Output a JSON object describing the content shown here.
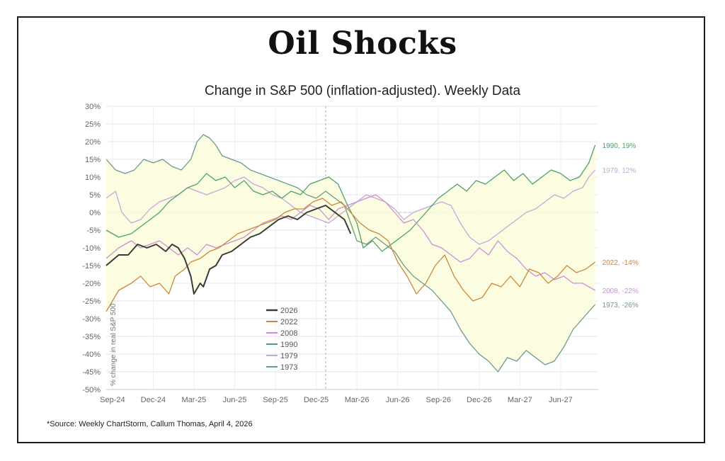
{
  "header": {
    "title": "Oil Shocks",
    "subtitle": "Change in S&P 500 (inflation-adjusted). Weekly Data"
  },
  "footer": {
    "source": "*Source: Weekly ChartStorm, Callum Thomas, April 4, 2026"
  },
  "colors": {
    "s2026": "#3a3a3a",
    "s2022": "#c9873a",
    "s2008": "#c990d8",
    "s1990": "#4ea06a",
    "s1979": "#c7a6dc",
    "s1973": "#6a9a8e",
    "fill": "#fbfbdc"
  },
  "chart_data": {
    "type": "line",
    "title": "Oil Shocks",
    "subtitle": "Change in S&P 500 (inflation-adjusted). Weekly Data",
    "ylabel": "% change in real S&P 500",
    "xlabel": "",
    "ylim": [
      -50,
      30
    ],
    "x_ticks": [
      "Sep-24",
      "Dec-24",
      "Mar-25",
      "Jun-25",
      "Sep-25",
      "Dec-25",
      "Mar-26",
      "Jun-26",
      "Sep-26",
      "Dec-26",
      "Mar-27",
      "Jun-27"
    ],
    "y_ticks": [
      "30%",
      "25%",
      "20%",
      "15%",
      "10%",
      "5%",
      "0%",
      "-5%",
      "-10%",
      "-15%",
      "-20%",
      "-25%",
      "-30%",
      "-35%",
      "-40%",
      "-45%",
      "-50%"
    ],
    "grid": true,
    "legend_position": "bottom-center",
    "x_unit": "weeks from start",
    "series": [
      {
        "name": "2026",
        "end_label": "",
        "points": [
          [
            0,
            -15
          ],
          [
            4,
            -12
          ],
          [
            7,
            -12
          ],
          [
            10,
            -9
          ],
          [
            13,
            -10
          ],
          [
            16,
            -9
          ],
          [
            19,
            -11
          ],
          [
            21,
            -9
          ],
          [
            23,
            -10
          ],
          [
            25,
            -13
          ],
          [
            27,
            -18
          ],
          [
            28,
            -23
          ],
          [
            30,
            -20
          ],
          [
            31,
            -21
          ],
          [
            33,
            -16
          ],
          [
            35,
            -15
          ],
          [
            37,
            -12
          ],
          [
            40,
            -11
          ],
          [
            43,
            -9
          ],
          [
            46,
            -7
          ],
          [
            49,
            -6
          ],
          [
            52,
            -4
          ],
          [
            55,
            -2
          ],
          [
            58,
            -1
          ],
          [
            61,
            -2
          ],
          [
            64,
            0
          ],
          [
            67,
            1
          ],
          [
            70,
            2
          ],
          [
            73,
            0
          ],
          [
            76,
            -2
          ],
          [
            78,
            -6
          ]
        ]
      },
      {
        "name": "2022",
        "end_label": "2022, -14%",
        "points": [
          [
            0,
            -28
          ],
          [
            4,
            -22
          ],
          [
            8,
            -20
          ],
          [
            11,
            -18
          ],
          [
            14,
            -21
          ],
          [
            17,
            -20
          ],
          [
            20,
            -23
          ],
          [
            22,
            -18
          ],
          [
            25,
            -16
          ],
          [
            27,
            -14
          ],
          [
            30,
            -13
          ],
          [
            33,
            -11
          ],
          [
            36,
            -10
          ],
          [
            39,
            -8
          ],
          [
            42,
            -6
          ],
          [
            45,
            -5
          ],
          [
            48,
            -4
          ],
          [
            51,
            -3
          ],
          [
            54,
            -2
          ],
          [
            57,
            0
          ],
          [
            60,
            1
          ],
          [
            63,
            1
          ],
          [
            66,
            3
          ],
          [
            69,
            4
          ],
          [
            72,
            2
          ],
          [
            75,
            3
          ],
          [
            78,
            0
          ],
          [
            81,
            -3
          ],
          [
            84,
            -5
          ],
          [
            87,
            -6
          ],
          [
            90,
            -8
          ],
          [
            93,
            -14
          ],
          [
            96,
            -18
          ],
          [
            99,
            -23
          ],
          [
            102,
            -20
          ],
          [
            105,
            -15
          ],
          [
            108,
            -12
          ],
          [
            111,
            -18
          ],
          [
            114,
            -22
          ],
          [
            117,
            -25
          ],
          [
            120,
            -24
          ],
          [
            123,
            -20
          ],
          [
            126,
            -21
          ],
          [
            129,
            -18
          ],
          [
            132,
            -21
          ],
          [
            135,
            -16
          ],
          [
            138,
            -17
          ],
          [
            141,
            -20
          ],
          [
            144,
            -18
          ],
          [
            147,
            -15
          ],
          [
            150,
            -17
          ],
          [
            153,
            -16
          ],
          [
            156,
            -14
          ]
        ]
      },
      {
        "name": "2008",
        "end_label": "2008, -22%",
        "points": [
          [
            0,
            -13
          ],
          [
            4,
            -10
          ],
          [
            8,
            -8
          ],
          [
            11,
            -10
          ],
          [
            14,
            -9
          ],
          [
            17,
            -8
          ],
          [
            20,
            -10
          ],
          [
            23,
            -12
          ],
          [
            26,
            -10
          ],
          [
            29,
            -12
          ],
          [
            32,
            -9
          ],
          [
            35,
            -10
          ],
          [
            38,
            -9
          ],
          [
            41,
            -8
          ],
          [
            44,
            -7
          ],
          [
            47,
            -5
          ],
          [
            50,
            -3
          ],
          [
            53,
            -2
          ],
          [
            56,
            -1
          ],
          [
            59,
            -2
          ],
          [
            62,
            0
          ],
          [
            65,
            2
          ],
          [
            68,
            1
          ],
          [
            71,
            -2
          ],
          [
            74,
            1
          ],
          [
            77,
            2
          ],
          [
            80,
            3
          ],
          [
            83,
            4
          ],
          [
            86,
            5
          ],
          [
            89,
            3
          ],
          [
            92,
            0
          ],
          [
            95,
            -3
          ],
          [
            98,
            -2
          ],
          [
            101,
            -5
          ],
          [
            104,
            -9
          ],
          [
            107,
            -10
          ],
          [
            110,
            -12
          ],
          [
            113,
            -14
          ],
          [
            116,
            -13
          ],
          [
            119,
            -10
          ],
          [
            122,
            -12
          ],
          [
            125,
            -8
          ],
          [
            128,
            -11
          ],
          [
            131,
            -13
          ],
          [
            134,
            -16
          ],
          [
            137,
            -18
          ],
          [
            140,
            -17
          ],
          [
            143,
            -19
          ],
          [
            146,
            -18
          ],
          [
            149,
            -20
          ],
          [
            152,
            -20
          ],
          [
            156,
            -22
          ]
        ]
      },
      {
        "name": "1990",
        "end_label": "1990, 19%",
        "points": [
          [
            0,
            -5
          ],
          [
            4,
            -7
          ],
          [
            8,
            -6
          ],
          [
            11,
            -4
          ],
          [
            14,
            -2
          ],
          [
            17,
            0
          ],
          [
            20,
            3
          ],
          [
            23,
            5
          ],
          [
            26,
            7
          ],
          [
            29,
            8
          ],
          [
            32,
            11
          ],
          [
            35,
            9
          ],
          [
            38,
            10
          ],
          [
            41,
            7
          ],
          [
            44,
            9
          ],
          [
            47,
            6
          ],
          [
            50,
            5
          ],
          [
            53,
            6
          ],
          [
            56,
            4
          ],
          [
            59,
            6
          ],
          [
            62,
            5
          ],
          [
            65,
            8
          ],
          [
            68,
            9
          ],
          [
            71,
            10
          ],
          [
            74,
            8
          ],
          [
            77,
            2
          ],
          [
            80,
            -3
          ],
          [
            82,
            -10
          ],
          [
            85,
            -8
          ],
          [
            88,
            -11
          ],
          [
            91,
            -9
          ],
          [
            94,
            -7
          ],
          [
            97,
            -5
          ],
          [
            100,
            -2
          ],
          [
            103,
            1
          ],
          [
            106,
            4
          ],
          [
            109,
            6
          ],
          [
            112,
            8
          ],
          [
            115,
            6
          ],
          [
            118,
            9
          ],
          [
            121,
            8
          ],
          [
            124,
            10
          ],
          [
            127,
            12
          ],
          [
            130,
            9
          ],
          [
            133,
            11
          ],
          [
            136,
            8
          ],
          [
            139,
            10
          ],
          [
            142,
            12
          ],
          [
            145,
            11
          ],
          [
            148,
            9
          ],
          [
            151,
            10
          ],
          [
            154,
            14
          ],
          [
            156,
            19
          ]
        ]
      },
      {
        "name": "1979",
        "end_label": "1979, 12%",
        "points": [
          [
            0,
            4
          ],
          [
            3,
            6
          ],
          [
            5,
            0
          ],
          [
            8,
            -3
          ],
          [
            11,
            -2
          ],
          [
            14,
            1
          ],
          [
            17,
            3
          ],
          [
            20,
            4
          ],
          [
            23,
            5
          ],
          [
            26,
            7
          ],
          [
            29,
            6
          ],
          [
            32,
            5
          ],
          [
            35,
            6
          ],
          [
            38,
            7
          ],
          [
            41,
            9
          ],
          [
            44,
            10
          ],
          [
            47,
            8
          ],
          [
            50,
            7
          ],
          [
            53,
            5
          ],
          [
            56,
            4
          ],
          [
            59,
            2
          ],
          [
            62,
            0
          ],
          [
            65,
            -1
          ],
          [
            68,
            -2
          ],
          [
            71,
            -3
          ],
          [
            74,
            -1
          ],
          [
            77,
            1
          ],
          [
            80,
            3
          ],
          [
            83,
            5
          ],
          [
            86,
            4
          ],
          [
            89,
            3
          ],
          [
            92,
            1
          ],
          [
            95,
            -2
          ],
          [
            98,
            0
          ],
          [
            101,
            1
          ],
          [
            104,
            2
          ],
          [
            107,
            3
          ],
          [
            110,
            2
          ],
          [
            113,
            -3
          ],
          [
            116,
            -7
          ],
          [
            119,
            -9
          ],
          [
            122,
            -8
          ],
          [
            125,
            -6
          ],
          [
            128,
            -4
          ],
          [
            131,
            -2
          ],
          [
            134,
            0
          ],
          [
            137,
            1
          ],
          [
            140,
            3
          ],
          [
            143,
            5
          ],
          [
            146,
            4
          ],
          [
            149,
            6
          ],
          [
            152,
            7
          ],
          [
            154,
            10
          ],
          [
            156,
            12
          ]
        ]
      },
      {
        "name": "1973",
        "end_label": "1973, -26%",
        "points": [
          [
            0,
            15
          ],
          [
            3,
            12
          ],
          [
            6,
            11
          ],
          [
            9,
            12
          ],
          [
            12,
            15
          ],
          [
            15,
            14
          ],
          [
            18,
            15
          ],
          [
            21,
            13
          ],
          [
            24,
            12
          ],
          [
            27,
            15
          ],
          [
            29,
            20
          ],
          [
            31,
            22
          ],
          [
            33,
            21
          ],
          [
            35,
            19
          ],
          [
            37,
            16
          ],
          [
            40,
            15
          ],
          [
            43,
            14
          ],
          [
            46,
            12
          ],
          [
            49,
            11
          ],
          [
            52,
            10
          ],
          [
            55,
            9
          ],
          [
            58,
            8
          ],
          [
            61,
            7
          ],
          [
            64,
            5
          ],
          [
            67,
            4
          ],
          [
            70,
            6
          ],
          [
            73,
            4
          ],
          [
            76,
            2
          ],
          [
            78,
            -3
          ],
          [
            80,
            -8
          ],
          [
            83,
            -9
          ],
          [
            86,
            -7
          ],
          [
            89,
            -9
          ],
          [
            92,
            -11
          ],
          [
            95,
            -15
          ],
          [
            98,
            -18
          ],
          [
            101,
            -20
          ],
          [
            104,
            -22
          ],
          [
            107,
            -25
          ],
          [
            110,
            -28
          ],
          [
            113,
            -33
          ],
          [
            116,
            -37
          ],
          [
            119,
            -40
          ],
          [
            122,
            -42
          ],
          [
            125,
            -45
          ],
          [
            128,
            -41
          ],
          [
            131,
            -42
          ],
          [
            134,
            -39
          ],
          [
            137,
            -41
          ],
          [
            140,
            -43
          ],
          [
            143,
            -42
          ],
          [
            146,
            -38
          ],
          [
            149,
            -33
          ],
          [
            152,
            -30
          ],
          [
            154,
            -28
          ],
          [
            156,
            -26
          ]
        ]
      }
    ]
  }
}
